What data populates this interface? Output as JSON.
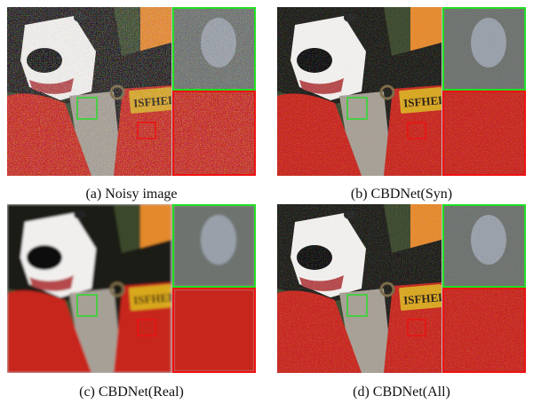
{
  "figure": {
    "panels": [
      {
        "id": "a",
        "caption": "(a) Noisy image",
        "noise": "heavy"
      },
      {
        "id": "b",
        "caption": "(b) CBDNet(Syn)",
        "noise": "light"
      },
      {
        "id": "c",
        "caption": "(c) CBDNet(Real)",
        "noise": "none"
      },
      {
        "id": "d",
        "caption": "(d) CBDNet(All)",
        "noise": "light"
      }
    ],
    "tag_text": "ISFHEL",
    "colors": {
      "zoom_green": "#22dd22",
      "zoom_red": "#ee1111",
      "pillow_red": "#c8271a",
      "dog_white": "#f2f0ee",
      "dog_dark": "#1f1a18",
      "tag_yellow": "#d9a81c",
      "background_orange": "#e58a2a"
    }
  }
}
